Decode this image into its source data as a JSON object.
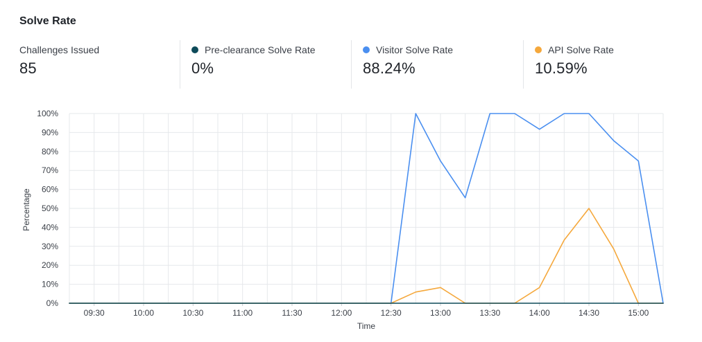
{
  "header": {
    "title": "Solve Rate"
  },
  "stats": [
    {
      "label": "Challenges Issued",
      "value": "85",
      "color": null
    },
    {
      "label": "Pre-clearance Solve Rate",
      "value": "0%",
      "color": "#0d4a59"
    },
    {
      "label": "Visitor Solve Rate",
      "value": "88.24%",
      "color": "#4a8ff0"
    },
    {
      "label": "API Solve Rate",
      "value": "10.59%",
      "color": "#f5a83c"
    }
  ],
  "chart_data": {
    "type": "line",
    "xlabel": "Time",
    "ylabel": "Percentage",
    "x": [
      "09:15",
      "09:30",
      "09:45",
      "10:00",
      "10:15",
      "10:30",
      "10:45",
      "11:00",
      "11:15",
      "11:30",
      "11:45",
      "12:00",
      "12:15",
      "12:30",
      "12:45",
      "13:00",
      "13:15",
      "13:30",
      "13:45",
      "14:00",
      "14:15",
      "14:30",
      "14:45",
      "15:00",
      "15:15"
    ],
    "x_tick_labels": [
      "09:30",
      "10:00",
      "10:30",
      "11:00",
      "11:30",
      "12:00",
      "12:30",
      "13:00",
      "13:30",
      "14:00",
      "14:30",
      "15:00"
    ],
    "y_tick_labels": [
      "0%",
      "10%",
      "20%",
      "30%",
      "40%",
      "50%",
      "60%",
      "70%",
      "80%",
      "90%",
      "100%"
    ],
    "ylim": [
      0,
      100
    ],
    "grid": true,
    "series": [
      {
        "name": "Pre-clearance Solve Rate",
        "color": "#0d4a59",
        "values": [
          0,
          0,
          0,
          0,
          0,
          0,
          0,
          0,
          0,
          0,
          0,
          0,
          0,
          0,
          0,
          0,
          0,
          0,
          0,
          0,
          0,
          0,
          0,
          0,
          0
        ]
      },
      {
        "name": "Visitor Solve Rate",
        "color": "#4a8ff0",
        "values": [
          0,
          0,
          0,
          0,
          0,
          0,
          0,
          0,
          0,
          0,
          0,
          0,
          0,
          0,
          100,
          75,
          55.6,
          100,
          100,
          91.7,
          100,
          100,
          85.7,
          75,
          0
        ]
      },
      {
        "name": "API Solve Rate",
        "color": "#f5a83c",
        "values": [
          0,
          0,
          0,
          0,
          0,
          0,
          0,
          0,
          0,
          0,
          0,
          0,
          0,
          0,
          5.9,
          8.3,
          0,
          0,
          0,
          8.3,
          33.3,
          50,
          28.6,
          0,
          0
        ]
      }
    ]
  }
}
